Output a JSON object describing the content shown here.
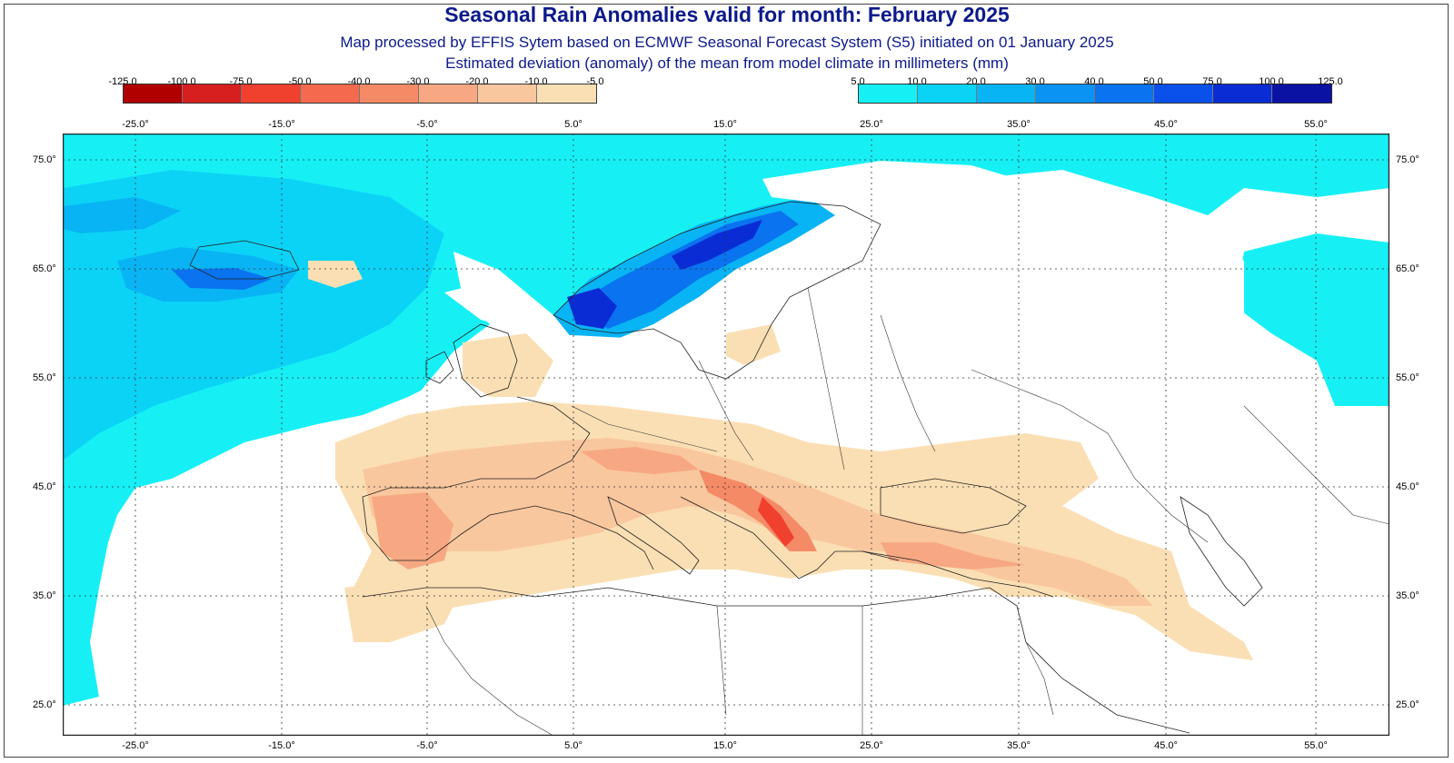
{
  "title": "Seasonal Rain Anomalies valid for month: February 2025",
  "subtitle": "Map processed by EFFIS Sytem based on ECMWF Seasonal Forecast System (S5) initiated on 01 January 2025",
  "description": "Estimated deviation (anomaly) of the mean from model climate in millimeters (mm)",
  "legend_negative": {
    "ticks": [
      "-125.0",
      "-100.0",
      "-75.0",
      "-50.0",
      "-40.0",
      "-30.0",
      "-20.0",
      "-10.0",
      "-5.0"
    ],
    "colors": [
      "#b00000",
      "#d71f1f",
      "#f0402e",
      "#f56a4e",
      "#f58a66",
      "#f7a882",
      "#f9c79e",
      "#fbdfb4"
    ]
  },
  "legend_positive": {
    "ticks": [
      "5.0",
      "10.0",
      "20.0",
      "30.0",
      "40.0",
      "50.0",
      "75.0",
      "100.0",
      "125.0"
    ],
    "colors": [
      "#16f0f5",
      "#0bd3f6",
      "#08b4f4",
      "#0a93f2",
      "#0a73ef",
      "#0a50ea",
      "#0a2cd5",
      "#0a12a4"
    ]
  },
  "longitude_labels": [
    "-25.0°",
    "-15.0°",
    "-5.0°",
    "5.0°",
    "15.0°",
    "25.0°",
    "35.0°",
    "45.0°",
    "55.0°"
  ],
  "latitude_labels": [
    "75.0°",
    "65.0°",
    "55.0°",
    "45.0°",
    "35.0°",
    "25.0°"
  ],
  "colors": {
    "title": "#0b1a8a",
    "border": "#222222",
    "gridline": "#333333"
  }
}
